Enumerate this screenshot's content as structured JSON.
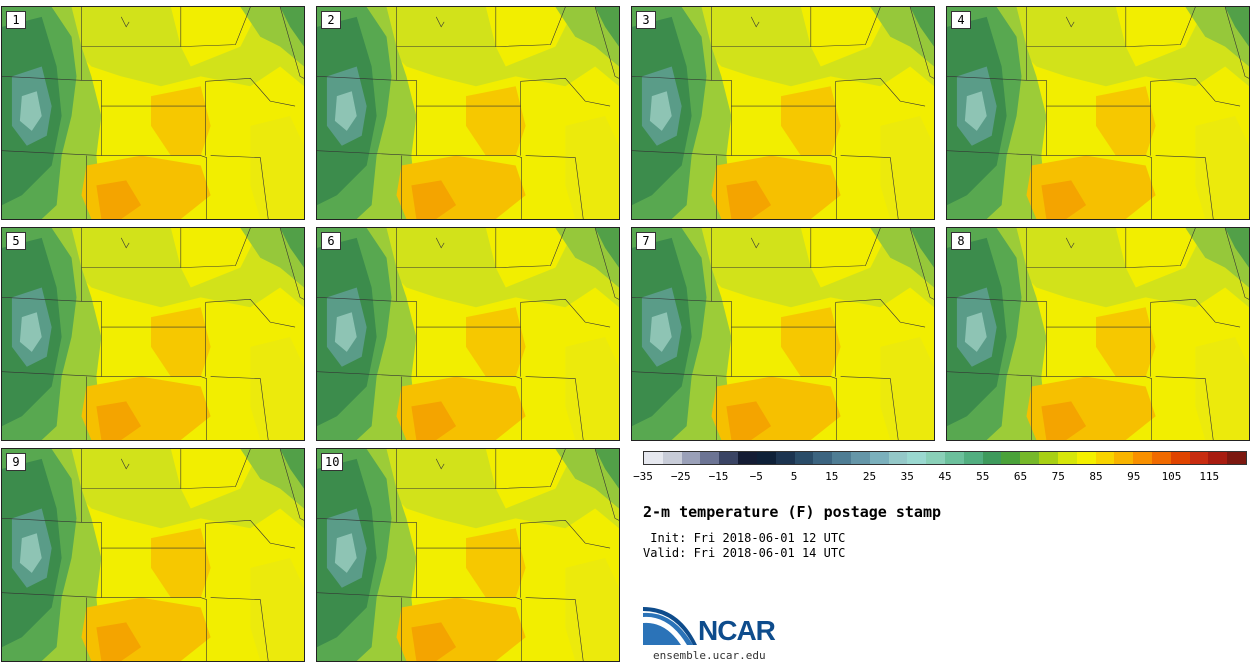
{
  "panels": [
    {
      "label": "1"
    },
    {
      "label": "2"
    },
    {
      "label": "3"
    },
    {
      "label": "4"
    },
    {
      "label": "5"
    },
    {
      "label": "6"
    },
    {
      "label": "7"
    },
    {
      "label": "8"
    },
    {
      "label": "9"
    },
    {
      "label": "10"
    }
  ],
  "colorbar": {
    "colors": [
      "#e6e8ef",
      "#c8ccd8",
      "#9aa0b8",
      "#6c7494",
      "#3a4464",
      "#141c34",
      "#0e2038",
      "#1c3450",
      "#2a4c68",
      "#3c6480",
      "#4f7d94",
      "#6596a8",
      "#7bb0bc",
      "#94c8c8",
      "#9ad8d0",
      "#8ad0b8",
      "#6cc09c",
      "#52ae80",
      "#3e9a5c",
      "#4aa23a",
      "#76b82a",
      "#a8d014",
      "#d6e60a",
      "#f4f000",
      "#f8d400",
      "#f8b400",
      "#f89000",
      "#f06a00",
      "#e04400",
      "#c82c10",
      "#a81c10",
      "#7c1810"
    ],
    "ticks": [
      "−35",
      "−25",
      "−15",
      "−5",
      "5",
      "15",
      "25",
      "35",
      "45",
      "55",
      "65",
      "75",
      "85",
      "95",
      "105",
      "115"
    ]
  },
  "title": "2-m temperature (F) postage stamp",
  "init": " Init: Fri 2018-06-01 12 UTC",
  "valid": "Valid: Fri 2018-06-01 14 UTC",
  "logo": {
    "text": "NCAR",
    "url": "ensemble.ucar.edu"
  }
}
